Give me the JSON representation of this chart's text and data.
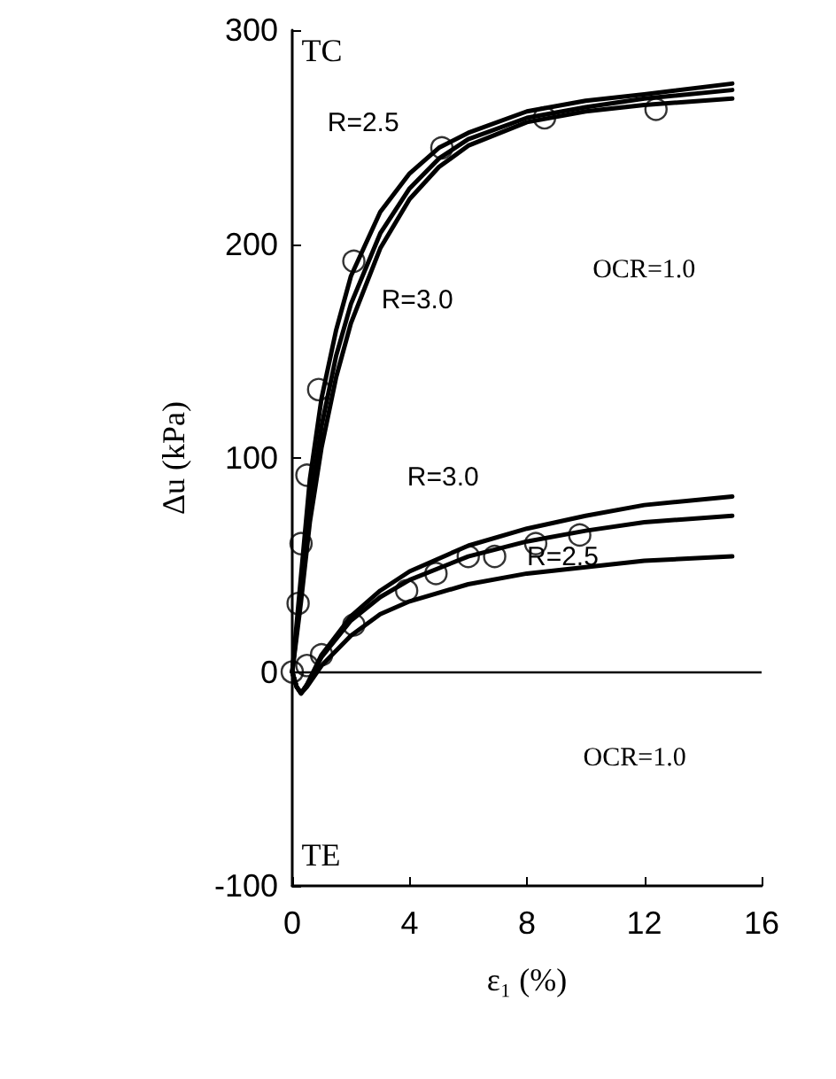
{
  "chart_data": {
    "type": "line",
    "xlabel": "ε₁ (%)",
    "ylabel": "Δu (kPa)",
    "xlim": [
      0,
      16
    ],
    "xticks": [
      0,
      4,
      8,
      12,
      16
    ],
    "ylim": [
      -100,
      300
    ],
    "yticks": [
      -100,
      0,
      100,
      200,
      300
    ],
    "grid": false,
    "marker": "none",
    "line_style": "solid",
    "ref_lines": [
      {
        "axis": "y",
        "value": 0,
        "color": "#000000"
      }
    ],
    "annotations": [
      "TC",
      "TE",
      "OCR=1.0",
      "OCR=1.0",
      "R=2.5",
      "R=3.0",
      "R=3.0",
      "R=2.5"
    ],
    "series": [
      {
        "color": "#000000",
        "x": [
          0,
          0.3,
          0.6,
          1,
          1.5,
          2,
          3,
          4,
          5,
          6,
          8,
          10,
          12,
          15
        ],
        "values": [
          0,
          45,
          90,
          128,
          160,
          185,
          215,
          233,
          245,
          252,
          262,
          267,
          270,
          275
        ]
      },
      {
        "color": "#000000",
        "x": [
          0,
          0.3,
          0.6,
          1,
          1.5,
          2,
          3,
          4,
          5,
          6,
          8,
          10,
          12,
          15
        ],
        "values": [
          0,
          38,
          78,
          115,
          148,
          172,
          205,
          226,
          240,
          249,
          259,
          264,
          268,
          272
        ]
      },
      {
        "color": "#000000",
        "x": [
          0,
          0.3,
          0.6,
          1,
          1.5,
          2,
          3,
          4,
          5,
          6,
          8,
          10,
          12,
          15
        ],
        "values": [
          0,
          33,
          70,
          105,
          138,
          163,
          198,
          221,
          236,
          246,
          257,
          262,
          265,
          268
        ]
      },
      {
        "color": "#000000",
        "x": [
          0,
          0.15,
          0.3,
          0.5,
          1,
          2,
          3,
          4,
          6,
          8,
          10,
          12,
          15
        ],
        "values": [
          0,
          -7,
          -10,
          -6,
          8,
          26,
          38,
          47,
          59,
          67,
          73,
          78,
          82
        ]
      },
      {
        "color": "#000000",
        "x": [
          0,
          0.15,
          0.3,
          0.5,
          1,
          2,
          3,
          4,
          6,
          8,
          10,
          12,
          15
        ],
        "values": [
          0,
          -7,
          -10,
          -6,
          7,
          24,
          35,
          43,
          54,
          61,
          66,
          70,
          73
        ]
      },
      {
        "color": "#000000",
        "x": [
          0,
          0.15,
          0.3,
          0.5,
          1,
          2,
          3,
          4,
          6,
          8,
          10,
          12,
          15
        ],
        "values": [
          0,
          -7,
          -10,
          -7,
          3,
          17,
          27,
          33,
          41,
          46,
          49,
          52,
          54
        ]
      },
      {
        "type": "scatter",
        "marker": "circle",
        "color": "#000000",
        "x": [
          0,
          0.2,
          0.3,
          0.5,
          0.9,
          2.1,
          5.1,
          8.6,
          12.4
        ],
        "values": [
          0,
          32,
          60,
          92,
          132,
          192,
          245,
          259,
          263
        ]
      },
      {
        "type": "scatter",
        "marker": "circle",
        "color": "#000000",
        "x": [
          0.5,
          1,
          2.1,
          3.9,
          4.9,
          6,
          6.9,
          8.3,
          9.8
        ],
        "values": [
          3,
          8,
          22,
          38,
          46,
          54,
          54,
          60,
          64
        ]
      }
    ]
  }
}
